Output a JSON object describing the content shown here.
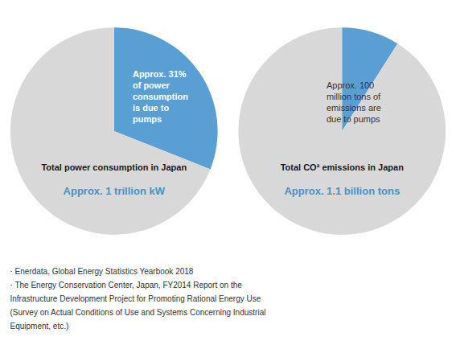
{
  "chart_data": [
    {
      "type": "pie",
      "title": "Total power consumption in Japan",
      "subtitle": "Approx. 1 trillion kW",
      "values": [
        31,
        69
      ],
      "colors": [
        "#5a9fd4",
        "#d8d8d8"
      ],
      "annotations": [
        "Approx. 31%\nof power\nconsumption\nis due to\npumps"
      ]
    },
    {
      "type": "pie",
      "title": "Total CO² emissions in Japan",
      "subtitle": "Approx. 1.1 billion tons",
      "values": [
        9,
        91
      ],
      "colors": [
        "#5a9fd4",
        "#d8d8d8"
      ],
      "annotations": [
        "Approx. 100\nmillion tons of\nemissions are\ndue to pumps"
      ]
    }
  ],
  "footnote": [
    "· Enerdata, Global Energy Statistics Yearbook 2018",
    "· The Energy Conservation Center, Japan, FY2014 Report on the",
    "Infrastructure Development Project for Promoting Rational Energy Use",
    "(Survey on Actual Conditions of Use and Systems Concerning Industrial",
    "Equipment, etc.)"
  ]
}
